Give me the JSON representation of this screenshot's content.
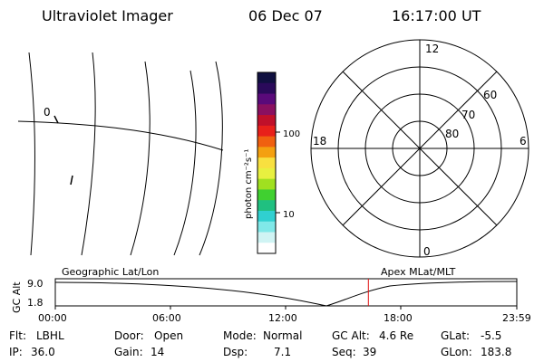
{
  "header": {
    "title": "Ultraviolet Imager",
    "date": "06 Dec 07",
    "time": "16:17:00 UT"
  },
  "map": {
    "label_0": "0"
  },
  "colorbar": {
    "unit": "photon cm⁻²s⁻¹",
    "tick_100": "100",
    "tick_10": "10",
    "colors": [
      "#101040",
      "#2a0a5a",
      "#5a0a7a",
      "#8a1060",
      "#c0102a",
      "#e8201a",
      "#f06010",
      "#f4a010",
      "#f8e040",
      "#e8f040",
      "#a0e020",
      "#40d030",
      "#20c080",
      "#30d0d0",
      "#80e8e8",
      "#d0f4f4",
      "#ffffff"
    ]
  },
  "polar": {
    "mlt_top": "12",
    "mlt_bottom": "0",
    "mlt_left": "18",
    "mlt_right": "6",
    "lat_60": "60",
    "lat_70": "70",
    "lat_80": "80"
  },
  "timeline": {
    "left_label": "Geographic Lat/Lon",
    "right_label": "Apex MLat/MLT",
    "yaxis_label": "GC Alt",
    "y_top": "9.0",
    "y_bottom": "1.8",
    "x_ticks": [
      "00:00",
      "06:00",
      "12:00",
      "18:00",
      "23:59"
    ],
    "marker_color": "#e01010",
    "marker_time_hours": 16.283
  },
  "info": {
    "flt_label": "Flt:",
    "flt_value": "LBHL",
    "ip_label": "IP:",
    "ip_value": "36.0",
    "door_label": "Door:",
    "door_value": "Open",
    "gain_label": "Gain:",
    "gain_value": "14",
    "mode_label": "Mode:",
    "mode_value": "Normal",
    "dsp_label": "Dsp:",
    "dsp_value": "7.1",
    "gcalt_label": "GC Alt:",
    "gcalt_value": "4.6 Re",
    "seq_label": "Seq:",
    "seq_value": "39",
    "glat_label": "GLat:",
    "glat_value": "-5.5",
    "glon_label": "GLon:",
    "glon_value": "183.8"
  }
}
